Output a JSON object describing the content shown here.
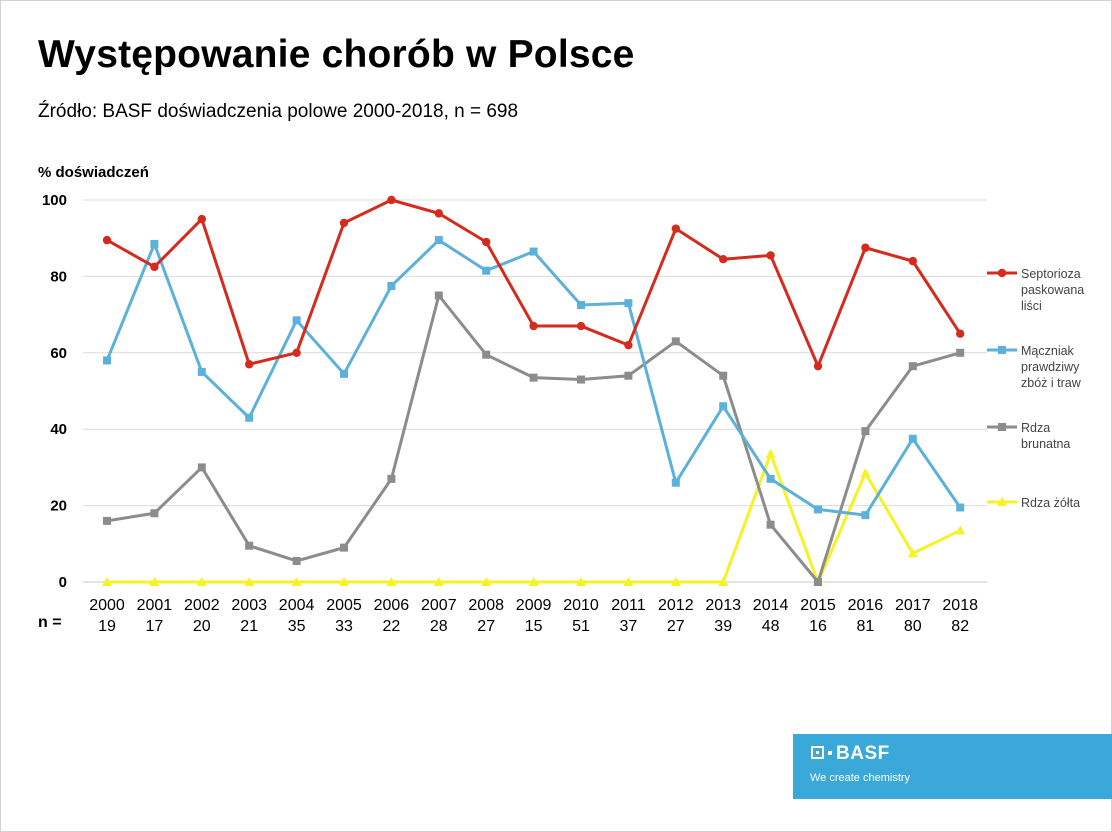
{
  "slide": {
    "title": "Występowanie chorób w Polsce",
    "subtitle": "Źródło: BASF doświadczenia polowe 2000-2018, n = 698",
    "n_prefix": "n ="
  },
  "logo": {
    "name": "BASF",
    "tagline": "We create chemistry",
    "color": "#3aa8d8"
  },
  "chart_data": {
    "type": "line",
    "ylabel": "% doświadczeń",
    "ylim": [
      0,
      100
    ],
    "yticks": [
      0,
      20,
      40,
      60,
      80,
      100
    ],
    "grid": true,
    "legend_position": "right",
    "categories": [
      "2000",
      "2001",
      "2002",
      "2003",
      "2004",
      "2005",
      "2006",
      "2007",
      "2008",
      "2009",
      "2010",
      "2011",
      "2012",
      "2013",
      "2014",
      "2015",
      "2016",
      "2017",
      "2018"
    ],
    "n_values": [
      "19",
      "17",
      "20",
      "21",
      "35",
      "33",
      "22",
      "28",
      "27",
      "15",
      "51",
      "37",
      "27",
      "39",
      "48",
      "16",
      "81",
      "80",
      "82"
    ],
    "series": [
      {
        "name": "Septorioza paskowana liści",
        "legend_lines": [
          "Septorioza",
          "paskowana",
          "liści"
        ],
        "color": "#d42b1e",
        "marker": "circle",
        "values": [
          89.5,
          82.5,
          95,
          57,
          60,
          94,
          100,
          96.5,
          89,
          67,
          67,
          62,
          92.5,
          84.5,
          85.5,
          56.5,
          87.5,
          84,
          65
        ]
      },
      {
        "name": "Mączniak prawdziwy zbóż i traw",
        "legend_lines": [
          "Mączniak",
          "prawdziwy",
          "zbóż i traw"
        ],
        "color": "#5bb1d9",
        "marker": "square",
        "values": [
          58,
          88.5,
          55,
          43,
          68.5,
          54.5,
          77.5,
          89.5,
          81.5,
          86.5,
          72.5,
          73,
          26,
          46,
          27,
          19,
          17.5,
          37.5,
          19.5
        ]
      },
      {
        "name": "Rdza brunatna",
        "legend_lines": [
          "Rdza",
          "brunatna"
        ],
        "color": "#8c8c8c",
        "marker": "square",
        "values": [
          16,
          18,
          30,
          9.5,
          5.5,
          9,
          27,
          75,
          59.5,
          53.5,
          53,
          54,
          63,
          54,
          15,
          0,
          39.5,
          56.5,
          60
        ]
      },
      {
        "name": "Rdza żółta",
        "legend_lines": [
          "Rdza żółta"
        ],
        "color": "#f5f225",
        "marker": "triangle",
        "values": [
          0,
          0,
          0,
          0,
          0,
          0,
          0,
          0,
          0,
          0,
          0,
          0,
          0,
          0,
          33.5,
          0,
          28.5,
          7.5,
          13.5
        ]
      }
    ]
  }
}
